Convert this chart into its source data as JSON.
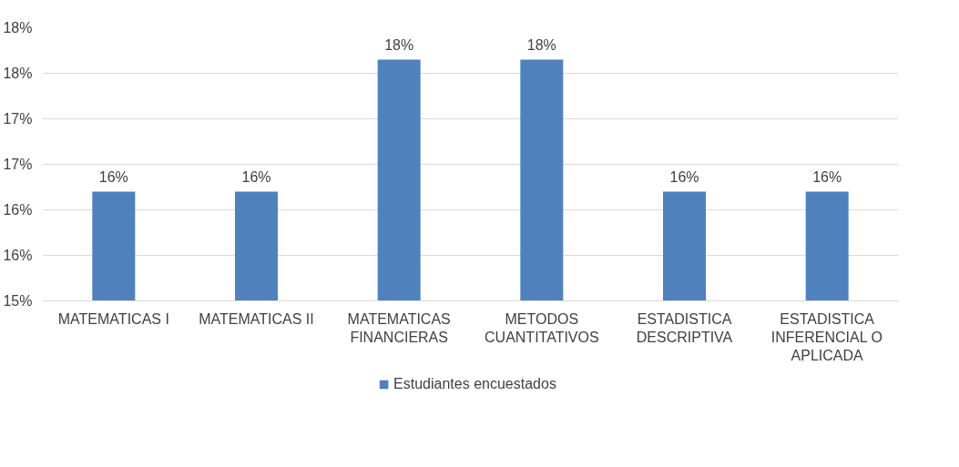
{
  "chart_data": {
    "type": "bar",
    "categories": [
      "MATEMATICAS I",
      "MATEMATICAS II",
      "MATEMATICAS\nFINANCIERAS",
      "METODOS\nCUANTITATIVOS",
      "ESTADISTICA\nDESCRIPTIVA",
      "ESTADISTICA\nINFERENCIAL O\nAPLICADA"
    ],
    "series": [
      {
        "name": "Estudiantes encuestados",
        "color": "#4f81bd",
        "values": [
          16.2,
          16.2,
          17.65,
          17.65,
          16.2,
          16.2
        ],
        "value_labels": [
          "16%",
          "16%",
          "18%",
          "18%",
          "16%",
          "16%"
        ]
      }
    ],
    "ylim": [
      15,
      18
    ],
    "yticks": [
      {
        "value": 15,
        "label": "15%"
      },
      {
        "value": 15.5,
        "label": "16%"
      },
      {
        "value": 16,
        "label": "16%"
      },
      {
        "value": 16.5,
        "label": "17%"
      },
      {
        "value": 17,
        "label": "17%"
      },
      {
        "value": 17.5,
        "label": "18%"
      },
      {
        "value": 18,
        "label": "18%"
      }
    ],
    "grid": "y",
    "legend": "bottom"
  }
}
